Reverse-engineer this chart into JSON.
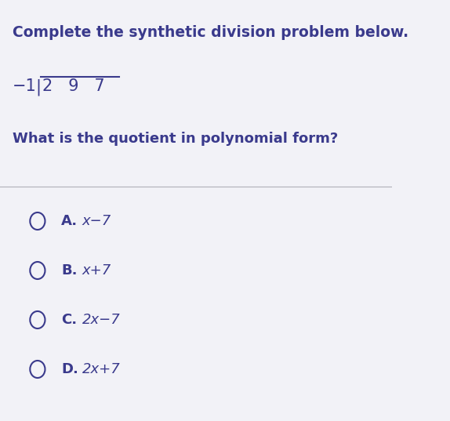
{
  "background_color": "#f2f2f7",
  "text_color": "#3a3a8c",
  "title": "Complete the synthetic division problem below.",
  "title_fontsize": 13.5,
  "division_fontsize": 15,
  "question": "What is the quotient in polynomial form?",
  "question_fontsize": 13,
  "options": [
    {
      "label": "A.",
      "expr": "x−7"
    },
    {
      "label": "B.",
      "expr": "x+7"
    },
    {
      "label": "C.",
      "expr": "2x−7"
    },
    {
      "label": "D.",
      "expr": "2x+7"
    }
  ],
  "option_fontsize": 13,
  "figsize": [
    5.74,
    5.37
  ],
  "dpi": 100
}
